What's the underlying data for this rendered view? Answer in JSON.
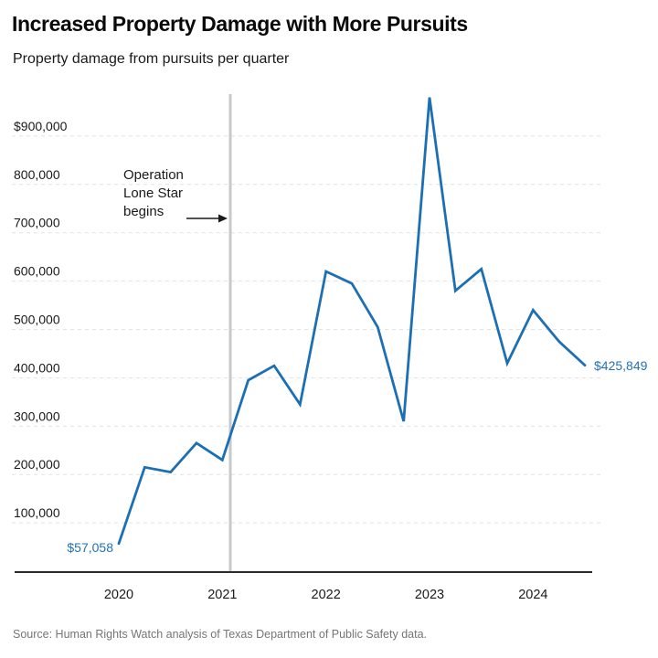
{
  "header": {
    "title": "Increased Property Damage with More Pursuits",
    "subtitle": "Property damage from pursuits per quarter"
  },
  "annotation": {
    "lines": [
      "Operation",
      "Lone Star",
      "begins"
    ]
  },
  "source": {
    "text": "Source: Human Rights Watch analysis of Texas Department of Public Safety data."
  },
  "colors": {
    "line": "#1d6fb4",
    "value_labels": "#2272b5",
    "event_line": "#c9c9c9",
    "gridline": "#e2e2e2",
    "axis": "#2b2b2b",
    "text": "#1a1a1a",
    "source_text": "#757575"
  },
  "chart_data": {
    "type": "line",
    "title": "Increased Property Damage with More Pursuits",
    "subtitle": "Property damage from pursuits per quarter",
    "series_name": "Property damage from pursuits per quarter (USD)",
    "x": [
      "2020 Q1",
      "2020 Q2",
      "2020 Q3",
      "2020 Q4",
      "2021 Q1",
      "2021 Q2",
      "2021 Q3",
      "2021 Q4",
      "2022 Q1",
      "2022 Q2",
      "2022 Q3",
      "2022 Q4",
      "2023 Q1",
      "2023 Q2",
      "2023 Q3",
      "2023 Q4",
      "2024 Q1",
      "2024 Q2",
      "2024 Q3"
    ],
    "values": [
      57058,
      215000,
      205000,
      265000,
      230000,
      395000,
      425000,
      345000,
      620000,
      595000,
      505000,
      310000,
      980000,
      580000,
      625000,
      430000,
      540000,
      475000,
      425849
    ],
    "first_point_label": "$57,058",
    "last_point_label": "$425,849",
    "x_tick_labels": [
      "2020",
      "2021",
      "2022",
      "2023",
      "2024"
    ],
    "y_ticks": [
      100000,
      200000,
      300000,
      400000,
      500000,
      600000,
      700000,
      800000,
      900000
    ],
    "y_tick_labels": [
      "100,000",
      "200,000",
      "300,000",
      "400,000",
      "500,000",
      "600,000",
      "700,000",
      "800,000",
      "$900,000"
    ],
    "ylim": [
      0,
      1000000
    ],
    "grid": "horizontal-dashed",
    "legend": "none",
    "event_line": {
      "label": "Operation Lone Star begins",
      "position": "March 2021 (between 2021 Q1 and 2021 Q2)"
    }
  }
}
